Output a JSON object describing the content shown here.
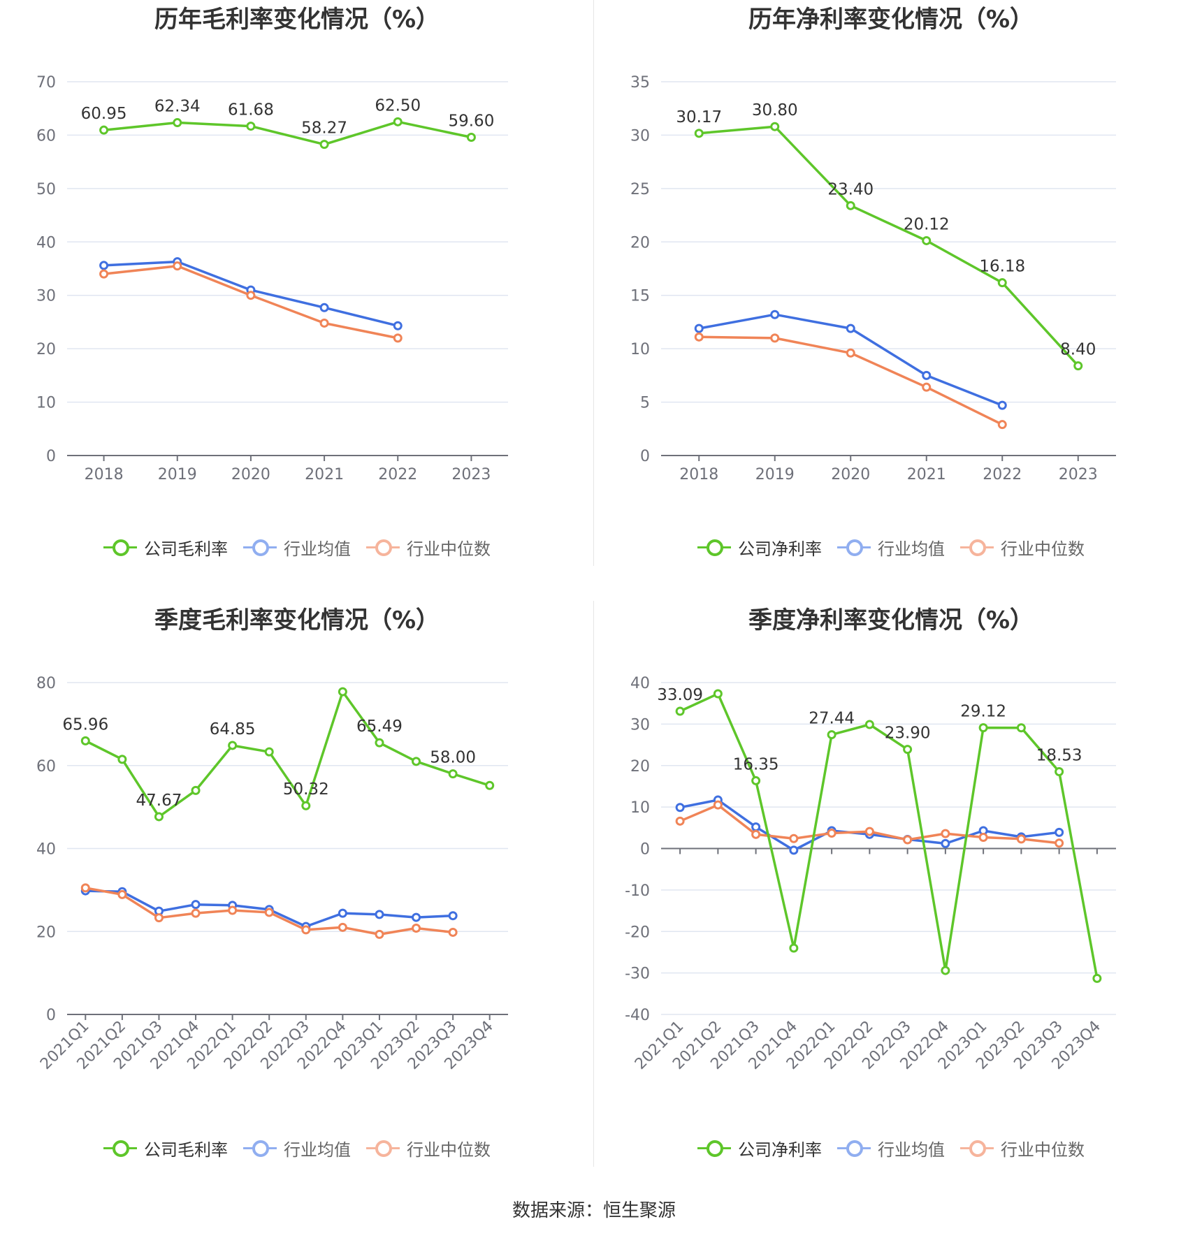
{
  "footer": {
    "source": "数据来源：恒生聚源"
  },
  "colors": {
    "company": "#5ec62a",
    "avg": "#3f6fe0",
    "median": "#f08457",
    "avg_legend": "#90aef0",
    "median_legend": "#f6b49c"
  },
  "chart_data": [
    {
      "type": "line",
      "title": "历年毛利率变化情况（%）",
      "categories": [
        "2018",
        "2019",
        "2020",
        "2021",
        "2022",
        "2023"
      ],
      "ylim": [
        0,
        70
      ],
      "yticks": [
        0,
        10,
        20,
        30,
        40,
        50,
        60,
        70
      ],
      "rotate_labels": false,
      "grid": true,
      "legend_position": "bottom",
      "series": [
        {
          "name": "公司毛利率",
          "color": "#5ec62a",
          "values": [
            60.95,
            62.34,
            61.68,
            58.27,
            62.5,
            59.6
          ],
          "labels": [
            "60.95",
            "62.34",
            "61.68",
            "58.27",
            "62.50",
            "59.60"
          ]
        },
        {
          "name": "行业均值",
          "color": "#3f6fe0",
          "values": [
            35.6,
            36.3,
            31.0,
            27.7,
            24.3,
            null
          ]
        },
        {
          "name": "行业中位数",
          "color": "#f08457",
          "values": [
            34.0,
            35.5,
            30.0,
            24.8,
            22.0,
            null
          ]
        }
      ]
    },
    {
      "type": "line",
      "title": "历年净利率变化情况（%）",
      "categories": [
        "2018",
        "2019",
        "2020",
        "2021",
        "2022",
        "2023"
      ],
      "ylim": [
        0,
        35
      ],
      "yticks": [
        0,
        5,
        10,
        15,
        20,
        25,
        30,
        35
      ],
      "rotate_labels": false,
      "grid": true,
      "legend_position": "bottom",
      "series": [
        {
          "name": "公司净利率",
          "color": "#5ec62a",
          "values": [
            30.17,
            30.8,
            23.4,
            20.12,
            16.18,
            8.4
          ],
          "labels": [
            "30.17",
            "30.80",
            "23.40",
            "20.12",
            "16.18",
            "8.40"
          ]
        },
        {
          "name": "行业均值",
          "color": "#3f6fe0",
          "values": [
            11.9,
            13.2,
            11.9,
            7.5,
            4.7,
            null
          ]
        },
        {
          "name": "行业中位数",
          "color": "#f08457",
          "values": [
            11.1,
            11.0,
            9.6,
            6.4,
            2.9,
            null
          ]
        }
      ]
    },
    {
      "type": "line",
      "title": "季度毛利率变化情况（%）",
      "categories": [
        "2021Q1",
        "2021Q2",
        "2021Q3",
        "2021Q4",
        "2022Q1",
        "2022Q2",
        "2022Q3",
        "2022Q4",
        "2023Q1",
        "2023Q2",
        "2023Q3",
        "2023Q4"
      ],
      "ylim": [
        0,
        80
      ],
      "yticks": [
        0,
        20,
        40,
        60,
        80
      ],
      "rotate_labels": true,
      "grid": true,
      "legend_position": "bottom",
      "series": [
        {
          "name": "公司毛利率",
          "color": "#5ec62a",
          "values": [
            65.96,
            61.5,
            47.67,
            54.0,
            64.85,
            63.3,
            50.32,
            77.8,
            65.49,
            61.0,
            58.0,
            55.2
          ],
          "labels": [
            "65.96",
            "",
            "47.67",
            "",
            "64.85",
            "",
            "50.32",
            "",
            "65.49",
            "",
            "58.00",
            ""
          ]
        },
        {
          "name": "行业均值",
          "color": "#3f6fe0",
          "values": [
            29.8,
            29.6,
            24.9,
            26.5,
            26.3,
            25.3,
            21.2,
            24.4,
            24.1,
            23.4,
            23.8,
            null
          ]
        },
        {
          "name": "行业中位数",
          "color": "#f08457",
          "values": [
            30.5,
            28.9,
            23.3,
            24.4,
            25.1,
            24.6,
            20.4,
            21.0,
            19.3,
            20.8,
            19.8,
            null
          ]
        }
      ]
    },
    {
      "type": "line",
      "title": "季度净利率变化情况（%）",
      "categories": [
        "2021Q1",
        "2021Q2",
        "2021Q3",
        "2021Q4",
        "2022Q1",
        "2022Q2",
        "2022Q3",
        "2022Q4",
        "2023Q1",
        "2023Q2",
        "2023Q3",
        "2023Q4"
      ],
      "ylim": [
        -40,
        40
      ],
      "yticks": [
        -40,
        -30,
        -20,
        -10,
        0,
        10,
        20,
        30,
        40
      ],
      "rotate_labels": true,
      "grid": true,
      "legend_position": "bottom",
      "series": [
        {
          "name": "公司净利率",
          "color": "#5ec62a",
          "values": [
            33.09,
            37.3,
            16.35,
            -24.0,
            27.44,
            29.9,
            23.9,
            -29.4,
            29.12,
            29.1,
            18.53,
            -31.3
          ],
          "labels": [
            "33.09",
            "",
            "16.35",
            "",
            "27.44",
            "",
            "23.90",
            "",
            "29.12",
            "",
            "18.53",
            ""
          ]
        },
        {
          "name": "行业均值",
          "color": "#3f6fe0",
          "values": [
            9.9,
            11.7,
            5.2,
            -0.4,
            4.3,
            3.4,
            2.2,
            1.2,
            4.3,
            2.8,
            3.9,
            null
          ]
        },
        {
          "name": "行业中位数",
          "color": "#f08457",
          "values": [
            6.6,
            10.5,
            3.4,
            2.4,
            3.7,
            4.1,
            2.1,
            3.6,
            2.7,
            2.3,
            1.3,
            null
          ]
        }
      ]
    }
  ]
}
